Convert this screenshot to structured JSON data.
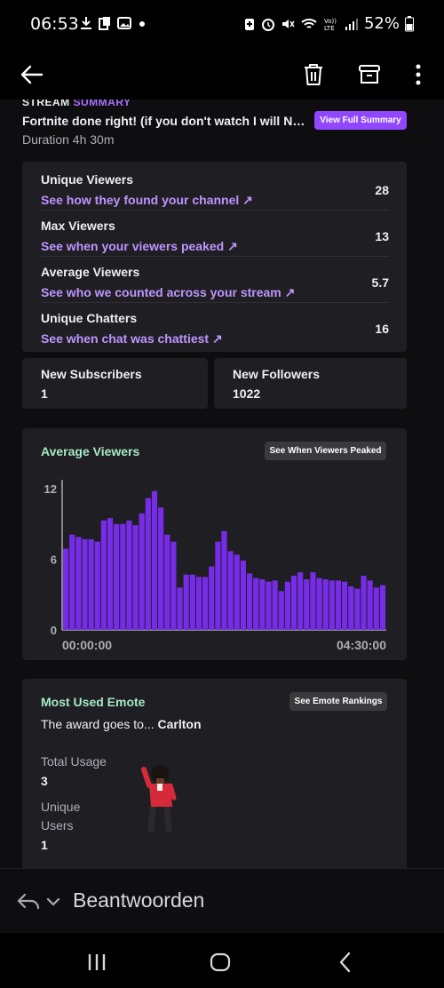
{
  "status_bar": {
    "time": "06:53",
    "battery": "52%",
    "icons": [
      "download-icon",
      "clipboard-icon",
      "image-icon",
      "dot-icon",
      "battery-saver-icon",
      "alarm-icon",
      "mute-icon",
      "wifi-icon",
      "volte-icon",
      "signal-icon",
      "battery-icon"
    ]
  },
  "app_bar": {
    "icons": [
      "back-arrow-icon",
      "trash-icon",
      "archive-icon",
      "more-vert-icon"
    ]
  },
  "summary": {
    "heading_part1": "STREAM ",
    "heading_part2": "SUMMARY",
    "stream_title": "Fortnite done right! (if you don't watch I will NO...",
    "duration": "Duration 4h 30m",
    "view_full_summary": "View Full Summary"
  },
  "stats": [
    {
      "label": "Unique Viewers",
      "link": "See how they found your channel ↗",
      "value": "28"
    },
    {
      "label": "Max Viewers",
      "link": "See when your viewers peaked ↗",
      "value": "13"
    },
    {
      "label": "Average Viewers",
      "link": "See who we counted across your stream ↗",
      "value": "5.7"
    },
    {
      "label": "Unique Chatters",
      "link": "See when chat was chattiest ↗",
      "value": "16"
    }
  ],
  "new_subscribers": {
    "label": "New Subscribers",
    "value": "1"
  },
  "new_followers": {
    "label": "New Followers",
    "value": "1022"
  },
  "avg_chart": {
    "title": "Average Viewers",
    "button": "See When Viewers Peaked",
    "x_start": "00:00:00",
    "x_end": "04:30:00"
  },
  "chart_data": {
    "type": "bar",
    "title": "Average Viewers",
    "ylim": [
      0,
      12
    ],
    "y_ticks": [
      "0",
      "6",
      "12"
    ],
    "x_tick_labels": [
      "00:00:00",
      "04:30:00"
    ],
    "bar_color": "#772ce8",
    "values": [
      6.9,
      8.1,
      7.9,
      7.7,
      7.7,
      7.5,
      9.3,
      9.5,
      9.0,
      9.0,
      9.3,
      8.9,
      9.9,
      11.2,
      11.8,
      10.4,
      8.1,
      7.5,
      3.6,
      4.7,
      4.7,
      4.5,
      4.5,
      5.4,
      7.5,
      8.4,
      6.7,
      6.4,
      5.9,
      4.8,
      4.4,
      4.3,
      4.1,
      4.2,
      3.3,
      4.1,
      4.6,
      4.9,
      4.3,
      4.9,
      4.4,
      4.3,
      4.2,
      4.2,
      4.1,
      3.7,
      3.5,
      4.6,
      4.2,
      3.6,
      3.8
    ]
  },
  "emote": {
    "title": "Most Used Emote",
    "button": "See Emote Rankings",
    "award_prefix": "The award goes to... ",
    "award_name": "Carlton",
    "total_usage_label": "Total Usage",
    "total_usage_value": "3",
    "unique_users_label_1": "Unique",
    "unique_users_label_2": "Users",
    "unique_users_value": "1"
  },
  "reply_bar": {
    "text": "Beantwoorden"
  },
  "colors": {
    "accent_purple": "#9147ff",
    "link_purple": "#bf94ff",
    "green_heading": "#a5e8c5",
    "card_bg": "#1f1f23"
  }
}
